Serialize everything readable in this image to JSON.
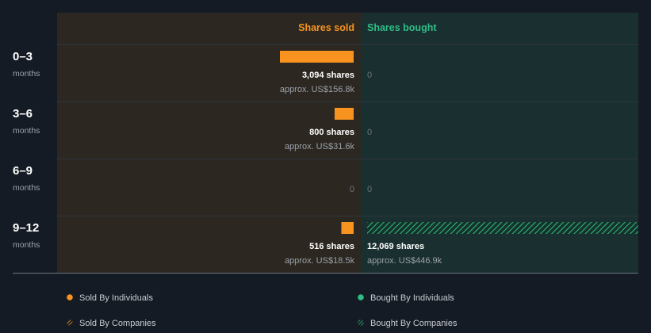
{
  "chart_data": {
    "type": "bar",
    "orientation": "horizontal-diverging",
    "headers": {
      "sold": "Shares sold",
      "bought": "Shares bought"
    },
    "rows": [
      {
        "period": "0–3",
        "unit": "months",
        "sold": {
          "shares": 3094,
          "shares_label": "3,094 shares",
          "value_label": "approx. US$156.8k",
          "zero_label": ""
        },
        "bought": {
          "shares": 0,
          "shares_label": "",
          "value_label": "",
          "zero_label": "0"
        }
      },
      {
        "period": "3–6",
        "unit": "months",
        "sold": {
          "shares": 800,
          "shares_label": "800 shares",
          "value_label": "approx. US$31.6k",
          "zero_label": ""
        },
        "bought": {
          "shares": 0,
          "shares_label": "",
          "value_label": "",
          "zero_label": "0"
        }
      },
      {
        "period": "6–9",
        "unit": "months",
        "sold": {
          "shares": 0,
          "shares_label": "",
          "value_label": "",
          "zero_label": "0"
        },
        "bought": {
          "shares": 0,
          "shares_label": "",
          "value_label": "",
          "zero_label": "0"
        }
      },
      {
        "period": "9–12",
        "unit": "months",
        "sold": {
          "shares": 516,
          "shares_label": "516 shares",
          "value_label": "approx. US$18.5k",
          "zero_label": ""
        },
        "bought": {
          "shares": 12069,
          "shares_label": "12,069 shares",
          "value_label": "approx. US$446.9k",
          "zero_label": ""
        }
      }
    ],
    "legend": {
      "sold_individuals": "Sold By Individuals",
      "sold_companies": "Sold By Companies",
      "bought_individuals": "Bought By Individuals",
      "bought_companies": "Bought By Companies"
    },
    "colors": {
      "sold": "#f7931e",
      "bought": "#2ebd85",
      "sold_panel": "#2c2720",
      "bought_panel": "#1a2f2f",
      "background": "#151b24"
    }
  }
}
